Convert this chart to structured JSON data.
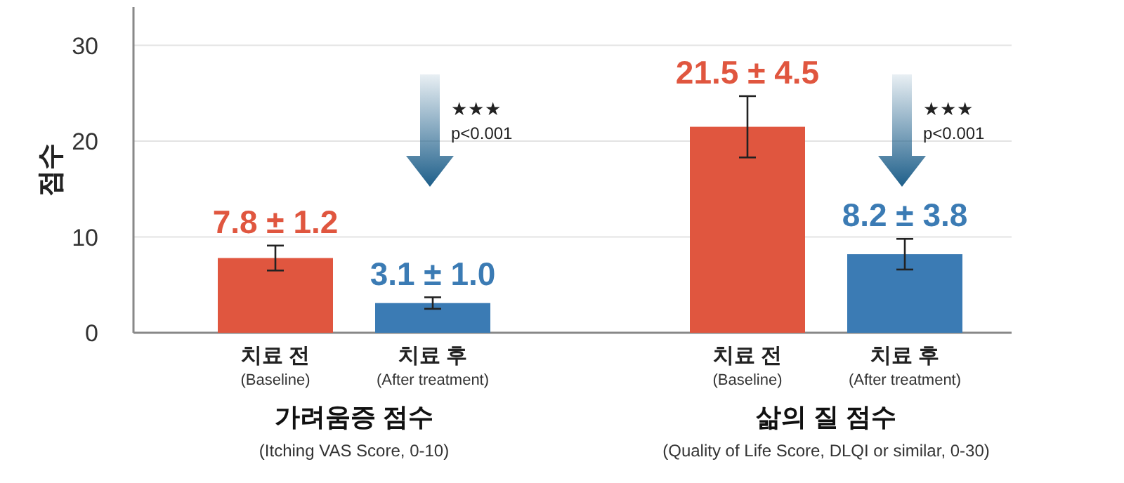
{
  "chart_data": {
    "type": "bar",
    "ylabel": "점수",
    "categories": [
      "치료 전\n(Baseline)",
      "치료 후\n(After treatment)",
      null,
      "치료 전\n(Baseline)",
      "치료 후\n(After treatment)"
    ],
    "values": [
      7.8,
      3.1,
      null,
      21.5,
      8.2
    ],
    "colors": [
      "#e0563f",
      "#3b7bb4",
      null,
      "#e0563f",
      "#3b7bb4"
    ],
    "errors": [
      1.3,
      0.6,
      null,
      3.2,
      1.6
    ],
    "value_labels": [
      "7.8 ± 1.2",
      "3.1 ± 1.0",
      null,
      "21.5 ± 4.5",
      "8.2 ± 3.8"
    ],
    "ylim": [
      0,
      34
    ],
    "yticks": [
      0,
      10,
      20,
      30
    ],
    "grid": "y",
    "annotations": [
      "★★★\np<0.001",
      "★★★\np<0.001",
      "가려움증 점수\n(Itching VAS Score, 0-10)",
      "삶의 질 점수\n(Quality of Life Score, DLQI or similar, 0-30)"
    ]
  }
}
